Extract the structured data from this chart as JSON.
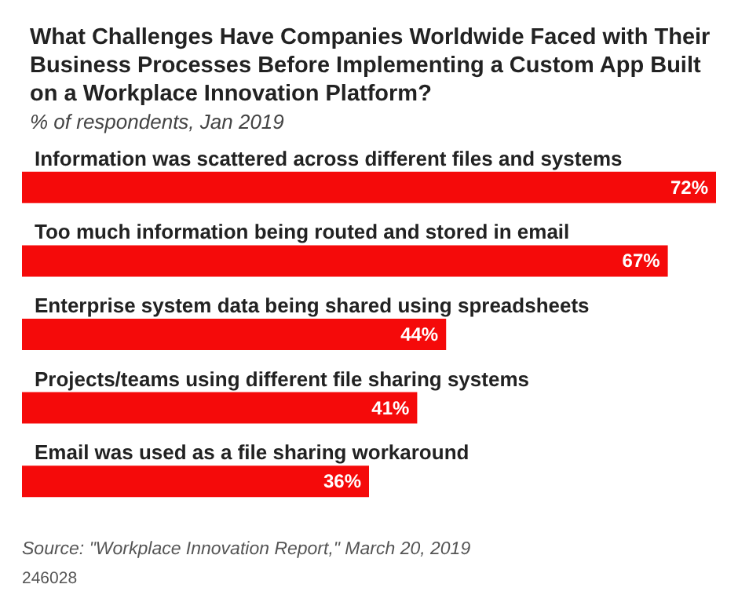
{
  "chart_data": {
    "type": "bar",
    "orientation": "horizontal",
    "title": "What Challenges Have Companies Worldwide Faced with Their Business Processes Before Implementing a Custom App Built on a Workplace Innovation Platform?",
    "subtitle": "% of respondents, Jan 2019",
    "categories": [
      "Information was scattered across different files and systems",
      "Too much information being routed and stored in email",
      "Enterprise system data being shared using spreadsheets",
      "Projects/teams using different file sharing systems",
      "Email was used as a file sharing workaround"
    ],
    "values": [
      72,
      67,
      44,
      41,
      36
    ],
    "color": "#f50a0a",
    "value_labels": [
      "72%",
      "67%",
      "44%",
      "41%",
      "36%"
    ],
    "annotations": [
      "Source: \"Workplace Innovation Report,\" March 20, 2019",
      "246028"
    ]
  }
}
